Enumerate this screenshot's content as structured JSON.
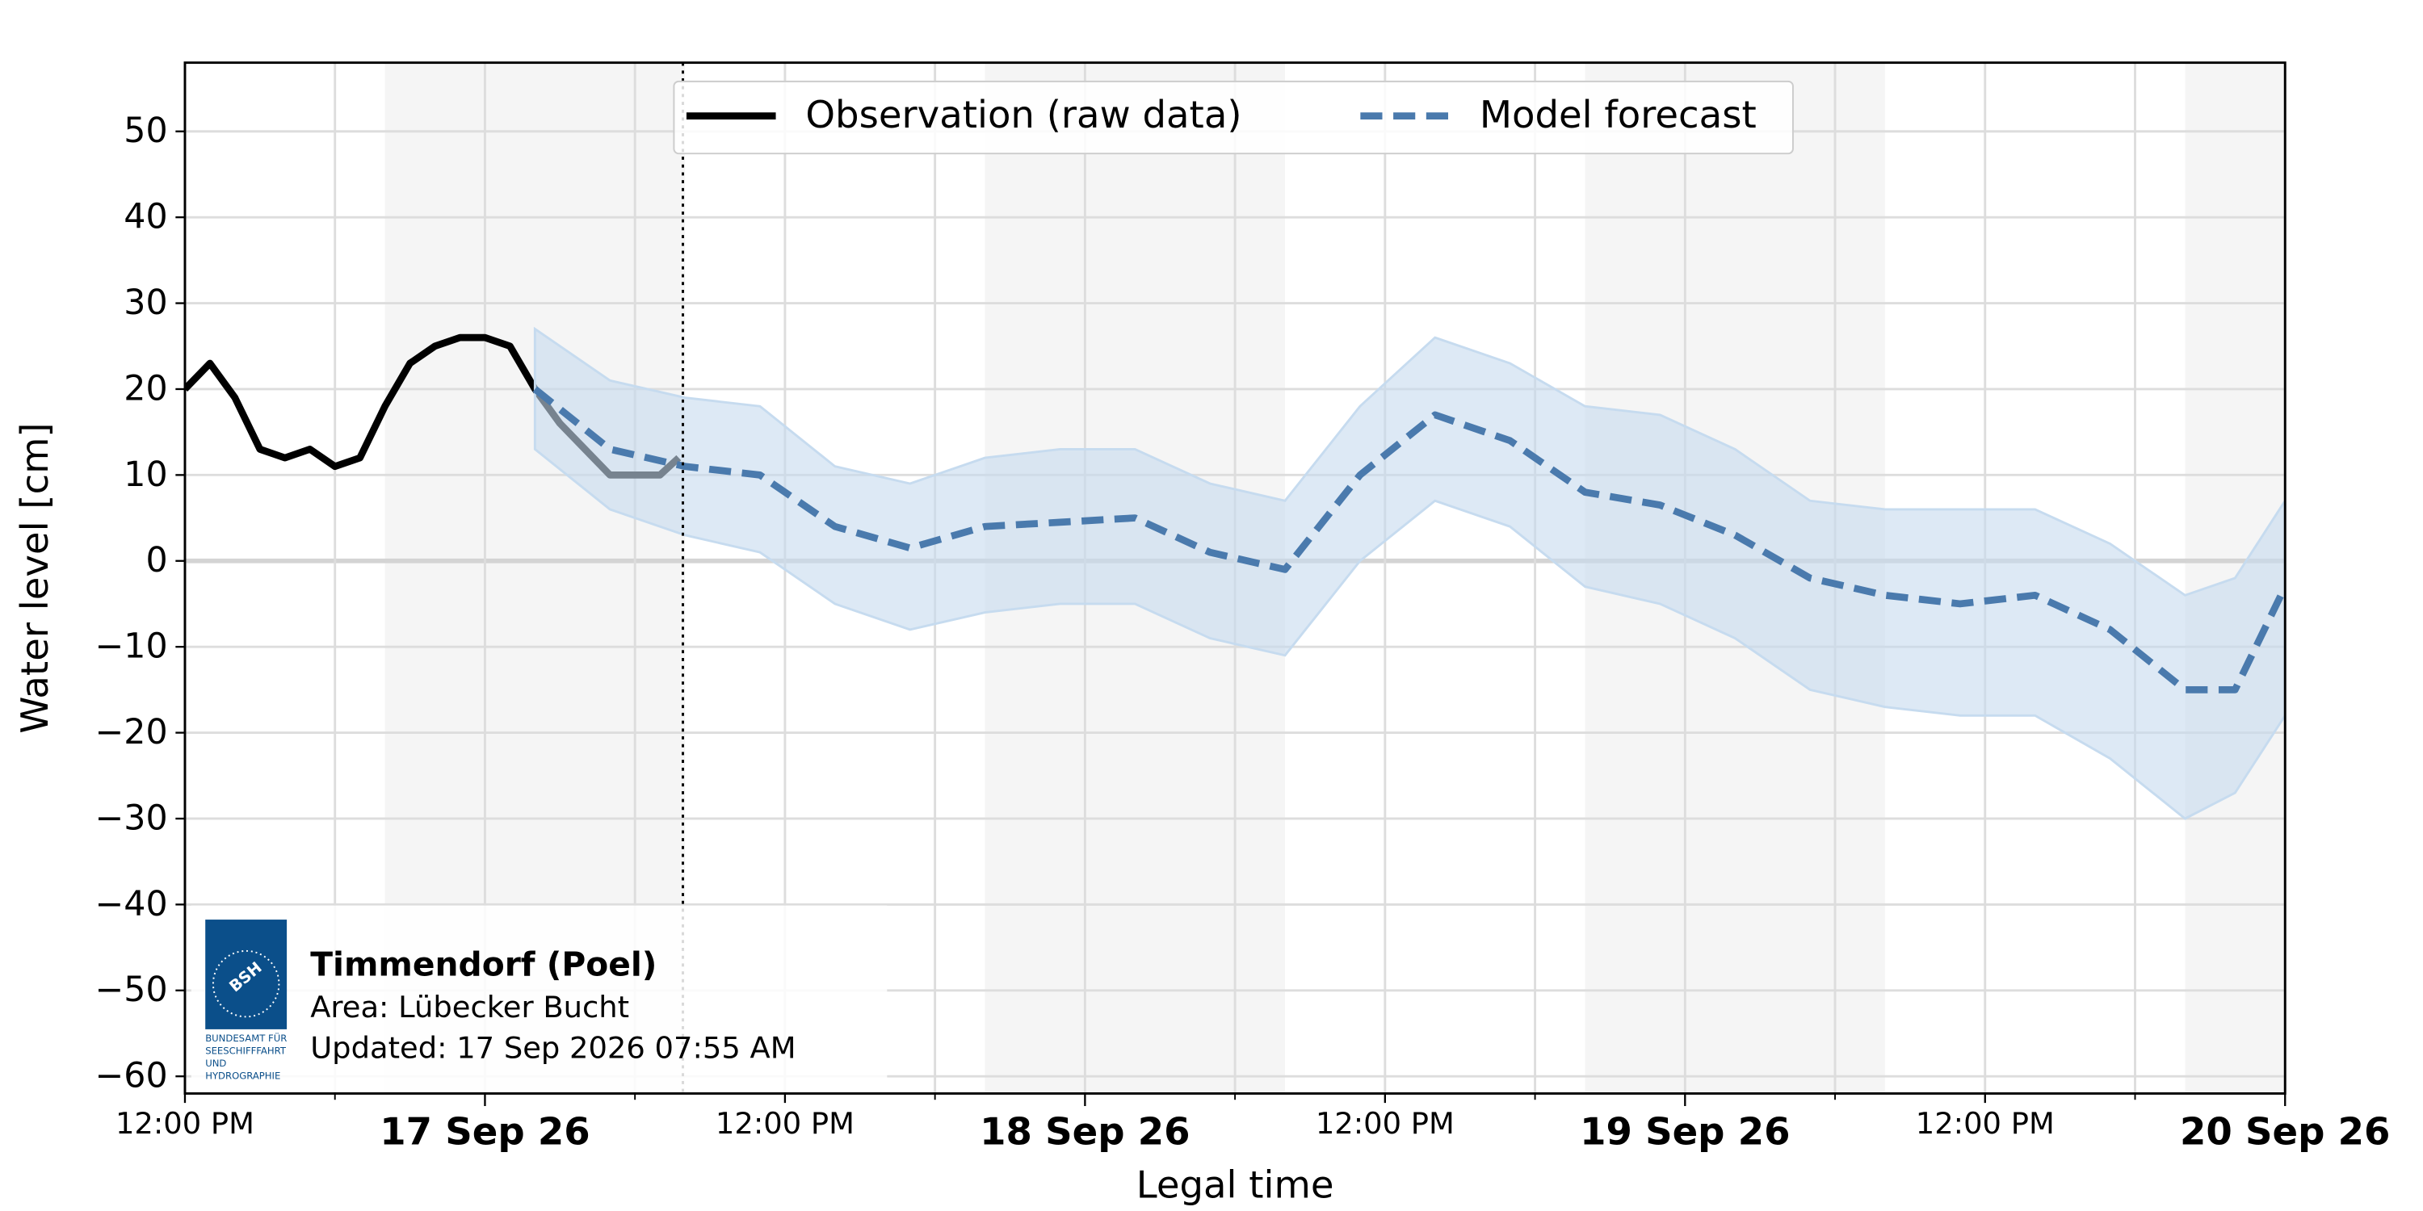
{
  "chart_data": {
    "type": "line",
    "xlabel": "Legal time",
    "ylabel": "Water level [cm]",
    "xlim": [
      "2026-09-16T12:00",
      "2026-09-20T00:00"
    ],
    "xticks": [
      {
        "value": "2026-09-16T12:00",
        "label": "12:00 PM"
      },
      {
        "value": "2026-09-17T00:00",
        "label": "17 Sep 26"
      },
      {
        "value": "2026-09-17T12:00",
        "label": "12:00 PM"
      },
      {
        "value": "2026-09-18T00:00",
        "label": "18 Sep 26"
      },
      {
        "value": "2026-09-18T12:00",
        "label": "12:00 PM"
      },
      {
        "value": "2026-09-19T00:00",
        "label": "19 Sep 26"
      },
      {
        "value": "2026-09-19T12:00",
        "label": "12:00 PM"
      },
      {
        "value": "2026-09-20T00:00",
        "label": "20 Sep 26"
      }
    ],
    "xminor_ticks": [
      "2026-09-16T18:00",
      "2026-09-17T06:00",
      "2026-09-17T18:00",
      "2026-09-18T06:00",
      "2026-09-18T18:00",
      "2026-09-19T06:00",
      "2026-09-19T18:00"
    ],
    "ylim": [
      -62,
      58
    ],
    "yticks": [
      {
        "value": -60,
        "label": "−60"
      },
      {
        "value": -50,
        "label": "−50"
      },
      {
        "value": -40,
        "label": "−40"
      },
      {
        "value": -30,
        "label": "−30"
      },
      {
        "value": -20,
        "label": "−20"
      },
      {
        "value": -10,
        "label": "−10"
      },
      0,
      10,
      20,
      30,
      40,
      50
    ],
    "grid": true,
    "legend": "top-center",
    "night_shading": [
      [
        "2026-09-16T20:00",
        "2026-09-17T08:00"
      ],
      [
        "2026-09-17T20:00",
        "2026-09-18T08:00"
      ],
      [
        "2026-09-18T20:00",
        "2026-09-19T08:00"
      ],
      [
        "2026-09-19T20:00",
        "2026-09-20T00:00"
      ]
    ],
    "now": "2026-09-17T07:55",
    "series": [
      {
        "name": "Observation (raw data)",
        "color": "#000000",
        "x": [
          "2026-09-16T12:00",
          "2026-09-16T13:00",
          "2026-09-16T14:00",
          "2026-09-16T15:00",
          "2026-09-16T16:00",
          "2026-09-16T17:00",
          "2026-09-16T18:00",
          "2026-09-16T19:00",
          "2026-09-16T20:00",
          "2026-09-16T21:00",
          "2026-09-16T22:00",
          "2026-09-16T23:00",
          "2026-09-17T00:00",
          "2026-09-17T01:00",
          "2026-09-17T02:00",
          "2026-09-17T03:00",
          "2026-09-17T04:00",
          "2026-09-17T05:00",
          "2026-09-17T06:00",
          "2026-09-17T07:00",
          "2026-09-17T07:45"
        ],
        "values": [
          20,
          23,
          19,
          13,
          12,
          13,
          11,
          12,
          18,
          23,
          25,
          26,
          26,
          25,
          20,
          16,
          13,
          10,
          10,
          10,
          12
        ]
      },
      {
        "name": "Model forecast",
        "color": "#4a7aad",
        "band_color": "#c6dbef",
        "x": [
          "2026-09-17T02:00",
          "2026-09-17T05:00",
          "2026-09-17T08:00",
          "2026-09-17T11:00",
          "2026-09-17T14:00",
          "2026-09-17T17:00",
          "2026-09-17T20:00",
          "2026-09-17T23:00",
          "2026-09-18T02:00",
          "2026-09-18T05:00",
          "2026-09-18T08:00",
          "2026-09-18T11:00",
          "2026-09-18T14:00",
          "2026-09-18T17:00",
          "2026-09-18T20:00",
          "2026-09-18T23:00",
          "2026-09-19T02:00",
          "2026-09-19T05:00",
          "2026-09-19T08:00",
          "2026-09-19T11:00",
          "2026-09-19T14:00",
          "2026-09-19T17:00",
          "2026-09-19T20:00",
          "2026-09-19T22:00",
          "2026-09-20T00:00"
        ],
        "values": [
          20,
          13,
          11,
          10,
          4,
          1.5,
          4,
          4.5,
          5,
          1,
          -1,
          10,
          17,
          14,
          8,
          6.5,
          3,
          -2,
          -4,
          -5,
          -4,
          -8,
          -15,
          -15,
          -3
        ],
        "upper": [
          27,
          21,
          19,
          18,
          11,
          9,
          12,
          13,
          13,
          9,
          7,
          18,
          26,
          23,
          18,
          17,
          13,
          7,
          6,
          6,
          6,
          2,
          -4,
          -2,
          7
        ],
        "lower": [
          13,
          6,
          3,
          1,
          -5,
          -8,
          -6,
          -5,
          -5,
          -9,
          -11,
          0,
          7,
          4,
          -3,
          -5,
          -9,
          -15,
          -17,
          -18,
          -18,
          -23,
          -30,
          -27,
          -18
        ]
      }
    ],
    "info": {
      "logo": "BSH",
      "agency": [
        "BUNDESAMT FÜR",
        "SEESCHIFFFAHRT",
        "UND",
        "HYDROGRAPHIE"
      ],
      "station": "Timmendorf (Poel)",
      "area": "Area: Lübecker Bucht",
      "updated": "Updated: 17 Sep 2026 07:55 AM"
    }
  }
}
